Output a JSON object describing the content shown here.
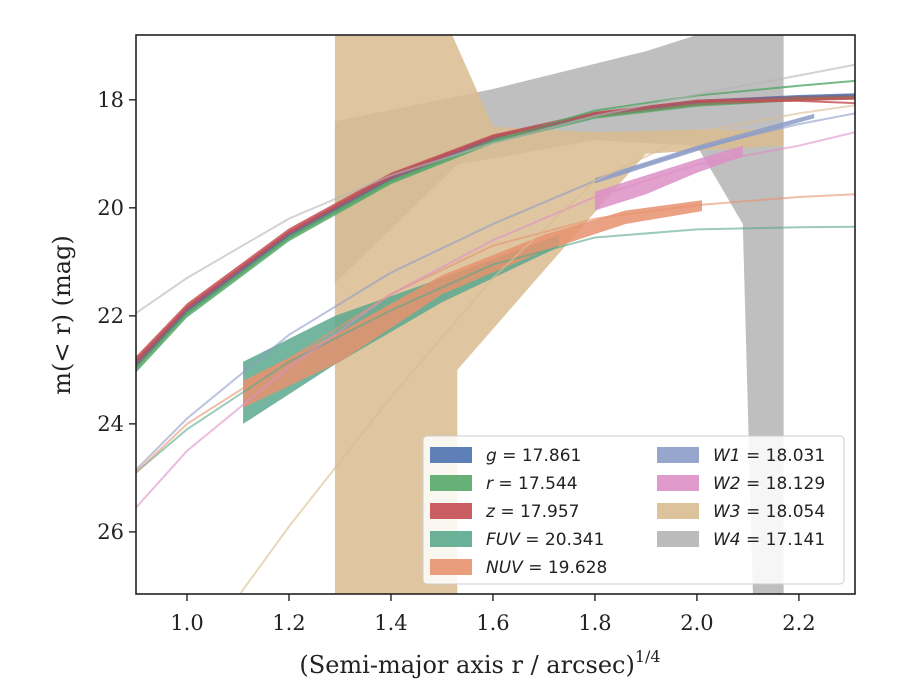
{
  "chart_data": {
    "type": "line",
    "xlabel": "(Semi-major axis r / arcsec)",
    "xlabel_exponent": "1/4",
    "ylabel": "m(< r) (mag)",
    "xlim": [
      0.9,
      2.31
    ],
    "ylim": [
      27.15,
      16.8
    ],
    "x_ticks": [
      1.0,
      1.2,
      1.4,
      1.6,
      1.8,
      2.0,
      2.2
    ],
    "x_tick_labels": [
      "1.0",
      "1.2",
      "1.4",
      "1.6",
      "1.8",
      "2.0",
      "2.2"
    ],
    "y_ticks": [
      18,
      20,
      22,
      24,
      26
    ],
    "y_tick_labels": [
      "18",
      "20",
      "22",
      "24",
      "26"
    ],
    "legend_position": "lower-right",
    "legend_columns": 2,
    "series": [
      {
        "name": "g = 17.861",
        "label_main": "g",
        "label_value": "= 17.861",
        "color": "#4c72b0",
        "model": [
          [
            0.9,
            22.9
          ],
          [
            1.0,
            21.9
          ],
          [
            1.2,
            20.5
          ],
          [
            1.4,
            19.45
          ],
          [
            1.6,
            18.72
          ],
          [
            1.8,
            18.28
          ],
          [
            2.0,
            18.05
          ],
          [
            2.2,
            17.95
          ],
          [
            2.31,
            17.92
          ]
        ],
        "band_upper": [
          [
            0.9,
            22.8
          ],
          [
            1.0,
            21.82
          ],
          [
            1.2,
            20.43
          ],
          [
            1.4,
            19.38
          ],
          [
            1.6,
            18.66
          ],
          [
            1.8,
            18.23
          ],
          [
            2.0,
            18.0
          ],
          [
            2.2,
            17.91
          ],
          [
            2.31,
            17.88
          ]
        ],
        "band_lower": [
          [
            0.9,
            22.98
          ],
          [
            1.0,
            21.98
          ],
          [
            1.2,
            20.57
          ],
          [
            1.4,
            19.51
          ],
          [
            1.6,
            18.78
          ],
          [
            1.8,
            18.33
          ],
          [
            2.0,
            18.1
          ],
          [
            2.2,
            18.0
          ],
          [
            2.31,
            17.96
          ]
        ]
      },
      {
        "name": "r = 17.544",
        "label_main": "r",
        "label_value": "= 17.544",
        "color": "#55a868",
        "model": [
          [
            0.9,
            22.95
          ],
          [
            1.0,
            21.95
          ],
          [
            1.2,
            20.55
          ],
          [
            1.4,
            19.5
          ],
          [
            1.6,
            18.75
          ],
          [
            1.8,
            18.3
          ],
          [
            2.0,
            18.08
          ],
          [
            2.2,
            17.97
          ],
          [
            2.31,
            17.95
          ]
        ],
        "band_upper": [
          [
            0.9,
            22.85
          ],
          [
            1.0,
            21.87
          ],
          [
            1.2,
            20.48
          ],
          [
            1.4,
            19.43
          ],
          [
            1.6,
            18.69
          ],
          [
            1.8,
            18.25
          ],
          [
            2.0,
            18.03
          ],
          [
            2.2,
            17.93
          ],
          [
            2.31,
            17.91
          ]
        ],
        "band_lower": [
          [
            0.9,
            23.05
          ],
          [
            1.0,
            22.03
          ],
          [
            1.2,
            20.62
          ],
          [
            1.4,
            19.56
          ],
          [
            1.6,
            18.81
          ],
          [
            1.8,
            18.35
          ],
          [
            2.0,
            18.13
          ],
          [
            2.2,
            18.02
          ],
          [
            2.31,
            17.99
          ]
        ],
        "extension": [
          [
            1.6,
            18.75
          ],
          [
            1.8,
            18.2
          ],
          [
            2.0,
            17.92
          ],
          [
            2.2,
            17.74
          ],
          [
            2.31,
            17.65
          ]
        ]
      },
      {
        "name": "z = 17.957",
        "label_main": "z",
        "label_value": "= 17.957",
        "color": "#c44e52",
        "model": [
          [
            0.9,
            22.85
          ],
          [
            1.0,
            21.85
          ],
          [
            1.2,
            20.45
          ],
          [
            1.4,
            19.42
          ],
          [
            1.6,
            18.7
          ],
          [
            1.8,
            18.27
          ],
          [
            2.0,
            18.05
          ],
          [
            2.2,
            17.97
          ],
          [
            2.31,
            17.95
          ]
        ],
        "band_upper": [
          [
            0.9,
            22.75
          ],
          [
            1.0,
            21.77
          ],
          [
            1.2,
            20.38
          ],
          [
            1.4,
            19.35
          ],
          [
            1.6,
            18.64
          ],
          [
            1.8,
            18.22
          ],
          [
            2.0,
            18.0
          ],
          [
            2.2,
            17.93
          ],
          [
            2.31,
            17.91
          ]
        ],
        "band_lower": [
          [
            0.9,
            22.95
          ],
          [
            1.0,
            21.93
          ],
          [
            1.2,
            20.52
          ],
          [
            1.4,
            19.48
          ],
          [
            1.6,
            18.76
          ],
          [
            1.8,
            18.32
          ],
          [
            2.0,
            18.1
          ],
          [
            2.2,
            18.02
          ],
          [
            2.31,
            18.0
          ]
        ],
        "extension": [
          [
            2.0,
            18.02
          ],
          [
            2.2,
            18.02
          ],
          [
            2.31,
            18.06
          ]
        ]
      },
      {
        "name": "FUV = 20.341",
        "label_main": "FUV",
        "label_value": "= 20.341",
        "color": "#5aa88e",
        "model": [
          [
            0.9,
            24.9
          ],
          [
            1.0,
            24.1
          ],
          [
            1.2,
            22.85
          ],
          [
            1.4,
            21.9
          ],
          [
            1.6,
            21.05
          ],
          [
            1.8,
            20.55
          ],
          [
            2.0,
            20.4
          ],
          [
            2.2,
            20.36
          ],
          [
            2.31,
            20.35
          ]
        ],
        "band_upper": [
          [
            1.11,
            22.85
          ],
          [
            1.29,
            22.0
          ],
          [
            1.5,
            21.3
          ],
          [
            1.73,
            20.5
          ]
        ],
        "band_lower": [
          [
            1.11,
            24.0
          ],
          [
            1.29,
            22.9
          ],
          [
            1.5,
            21.75
          ],
          [
            1.73,
            20.72
          ]
        ]
      },
      {
        "name": "NUV = 19.628",
        "label_main": "NUV",
        "label_value": "= 19.628",
        "color": "#e8926e",
        "model": [
          [
            0.9,
            24.9
          ],
          [
            1.0,
            24.0
          ],
          [
            1.2,
            22.8
          ],
          [
            1.4,
            21.6
          ],
          [
            1.6,
            20.7
          ],
          [
            1.8,
            20.2
          ],
          [
            2.0,
            19.95
          ],
          [
            2.2,
            19.8
          ],
          [
            2.31,
            19.75
          ]
        ],
        "band_upper": [
          [
            1.11,
            23.2
          ],
          [
            1.3,
            22.3
          ],
          [
            1.5,
            21.25
          ],
          [
            1.7,
            20.5
          ],
          [
            1.86,
            20.05
          ],
          [
            2.01,
            19.86
          ]
        ],
        "band_lower": [
          [
            1.11,
            23.7
          ],
          [
            1.3,
            22.85
          ],
          [
            1.5,
            21.6
          ],
          [
            1.7,
            20.8
          ],
          [
            1.86,
            20.3
          ],
          [
            2.01,
            20.06
          ]
        ]
      },
      {
        "name": "W1 = 18.031",
        "label_main": "W1",
        "label_value": "= 18.031",
        "color": "#8c9cc8",
        "model": [
          [
            0.9,
            24.85
          ],
          [
            1.0,
            23.9
          ],
          [
            1.2,
            22.35
          ],
          [
            1.4,
            21.2
          ],
          [
            1.6,
            20.3
          ],
          [
            1.8,
            19.5
          ],
          [
            2.0,
            18.9
          ],
          [
            2.2,
            18.45
          ],
          [
            2.31,
            18.25
          ]
        ],
        "band_upper": [
          [
            1.8,
            19.45
          ],
          [
            2.0,
            18.85
          ],
          [
            2.23,
            18.26
          ]
        ],
        "band_lower": [
          [
            1.8,
            19.55
          ],
          [
            2.0,
            18.95
          ],
          [
            2.23,
            18.34
          ]
        ]
      },
      {
        "name": "W2 = 18.129",
        "label_main": "W2",
        "label_value": "= 18.129",
        "color": "#dd8fc6",
        "model": [
          [
            0.9,
            25.55
          ],
          [
            1.0,
            24.5
          ],
          [
            1.2,
            22.95
          ],
          [
            1.4,
            21.6
          ],
          [
            1.6,
            20.6
          ],
          [
            1.8,
            19.8
          ],
          [
            2.0,
            19.2
          ],
          [
            2.2,
            18.85
          ],
          [
            2.31,
            18.6
          ]
        ],
        "band_upper": [
          [
            1.8,
            19.7
          ],
          [
            1.9,
            19.4
          ],
          [
            2.0,
            19.1
          ],
          [
            2.09,
            18.85
          ]
        ],
        "band_lower": [
          [
            1.8,
            20.05
          ],
          [
            1.9,
            19.75
          ],
          [
            2.0,
            19.35
          ],
          [
            2.09,
            19.05
          ]
        ]
      },
      {
        "name": "W3 = 18.054",
        "label_main": "W3",
        "label_value": "= 18.054",
        "color": "#d9bc91",
        "model": [
          [
            1.1,
            27.2
          ],
          [
            1.2,
            25.9
          ],
          [
            1.4,
            23.5
          ],
          [
            1.6,
            21.3
          ],
          [
            1.8,
            19.5
          ],
          [
            2.0,
            18.6
          ],
          [
            2.2,
            18.25
          ],
          [
            2.31,
            18.1
          ]
        ],
        "band_upper": [
          [
            1.29,
            16.8
          ],
          [
            1.52,
            16.8
          ],
          [
            1.6,
            18.5
          ],
          [
            1.8,
            18.6
          ],
          [
            2.0,
            18.55
          ],
          [
            2.17,
            18.55
          ]
        ],
        "band_lower": [
          [
            1.29,
            27.2
          ],
          [
            1.53,
            27.2
          ],
          [
            1.53,
            23.0
          ],
          [
            1.9,
            19.0
          ],
          [
            2.17,
            18.85
          ]
        ]
      },
      {
        "name": "W4 = 17.141",
        "label_main": "W4",
        "label_value": "= 17.141",
        "color": "#b4b4b4",
        "model": [
          [
            0.9,
            21.95
          ],
          [
            1.0,
            21.3
          ],
          [
            1.2,
            20.2
          ],
          [
            1.4,
            19.4
          ],
          [
            1.6,
            18.8
          ],
          [
            1.8,
            18.3
          ],
          [
            2.0,
            17.9
          ],
          [
            2.2,
            17.55
          ],
          [
            2.31,
            17.35
          ]
        ],
        "band_upper": [
          [
            1.29,
            18.4
          ],
          [
            1.6,
            17.8
          ],
          [
            1.9,
            17.1
          ],
          [
            2.0,
            16.8
          ],
          [
            2.17,
            16.8
          ]
        ],
        "band_lower": [
          [
            1.29,
            21.4
          ],
          [
            1.53,
            19.2
          ],
          [
            1.8,
            18.75
          ],
          [
            2.0,
            18.85
          ],
          [
            2.09,
            20.3
          ],
          [
            2.11,
            27.2
          ],
          [
            2.17,
            27.2
          ]
        ]
      }
    ]
  }
}
